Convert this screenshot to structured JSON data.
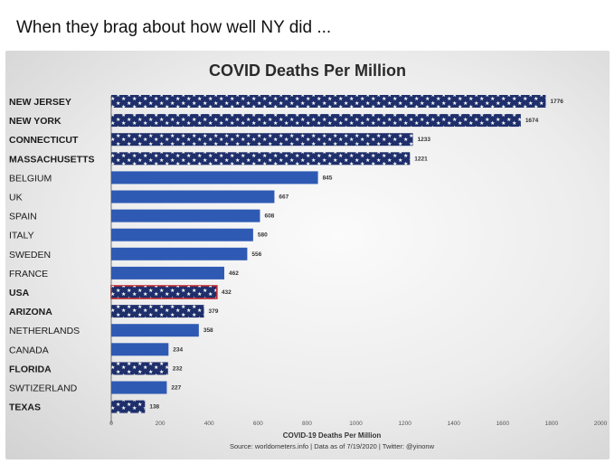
{
  "caption": "When they brag about how well NY did ...",
  "chart_data": {
    "type": "bar",
    "orientation": "horizontal",
    "title": "COVID Deaths Per Million",
    "xlabel": "COVID-19 Deaths Per Million",
    "source": "Source:  worldometers.info | Data as of 7/19/2020 | Twitter: @yinonw",
    "xlim": [
      0,
      2000
    ],
    "xticks": [
      0,
      200,
      400,
      600,
      800,
      1000,
      1200,
      1400,
      1600,
      1800,
      2000
    ],
    "categories": [
      "NEW JERSEY",
      "NEW YORK",
      "CONNECTICUT",
      "MASSACHUSETTS",
      "BELGIUM",
      "UK",
      "SPAIN",
      "ITALY",
      "SWEDEN",
      "FRANCE",
      "USA",
      "ARIZONA",
      "NETHERLANDS",
      "CANADA",
      "FLORIDA",
      "SWTIZERLAND",
      "TEXAS"
    ],
    "values": [
      1776,
      1674,
      1233,
      1221,
      845,
      667,
      608,
      580,
      556,
      462,
      432,
      379,
      358,
      234,
      232,
      227,
      138
    ],
    "bold_labels": [
      true,
      true,
      true,
      true,
      false,
      false,
      false,
      false,
      false,
      false,
      true,
      true,
      false,
      false,
      true,
      false,
      true
    ],
    "bar_style": [
      "stars",
      "stars",
      "stars",
      "stars",
      "plain",
      "plain",
      "plain",
      "plain",
      "plain",
      "plain",
      "usa",
      "stars",
      "plain",
      "plain",
      "stars",
      "plain",
      "stars"
    ],
    "colors": {
      "star_bar": "#1e2f6b",
      "plain_bar": "#2f5ab4",
      "usa_border": "#c0282d",
      "star": "#ffffff"
    }
  }
}
